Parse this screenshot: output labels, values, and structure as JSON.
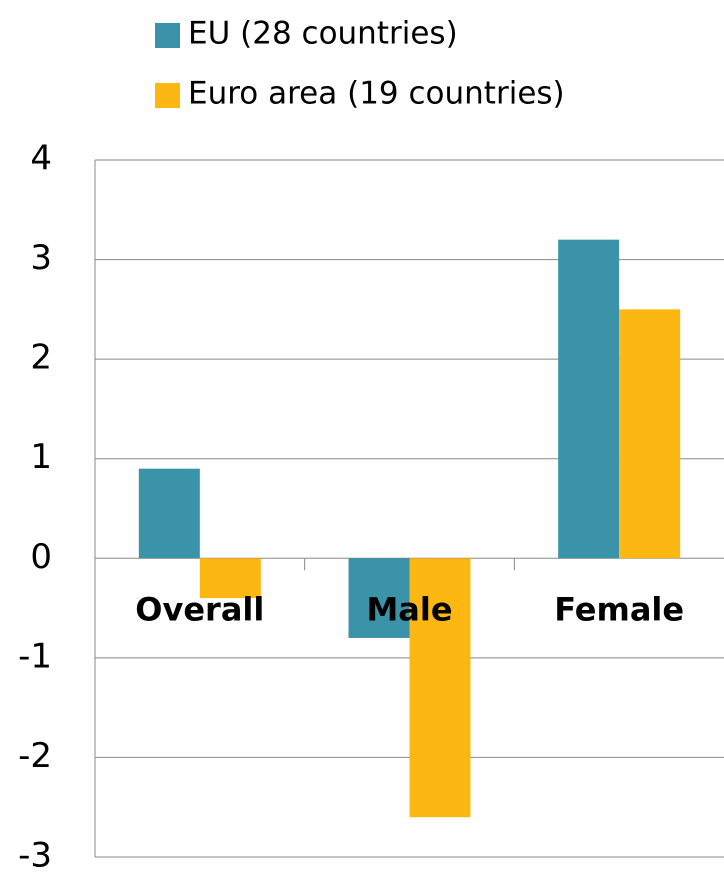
{
  "chart_data": {
    "type": "bar",
    "categories": [
      "Overall",
      "Male",
      "Female"
    ],
    "series": [
      {
        "name": "EU (28 countries)",
        "color": "#3a93a8",
        "values": [
          0.9,
          -0.8,
          3.2
        ]
      },
      {
        "name": "Euro area (19 countries)",
        "color": "#fdb713",
        "values": [
          -0.4,
          -2.6,
          2.5
        ]
      }
    ],
    "ylim": [
      -3,
      4
    ],
    "yticks": [
      -3,
      -2,
      -1,
      0,
      1,
      2,
      3,
      4
    ],
    "grid": true,
    "legend": "top"
  }
}
